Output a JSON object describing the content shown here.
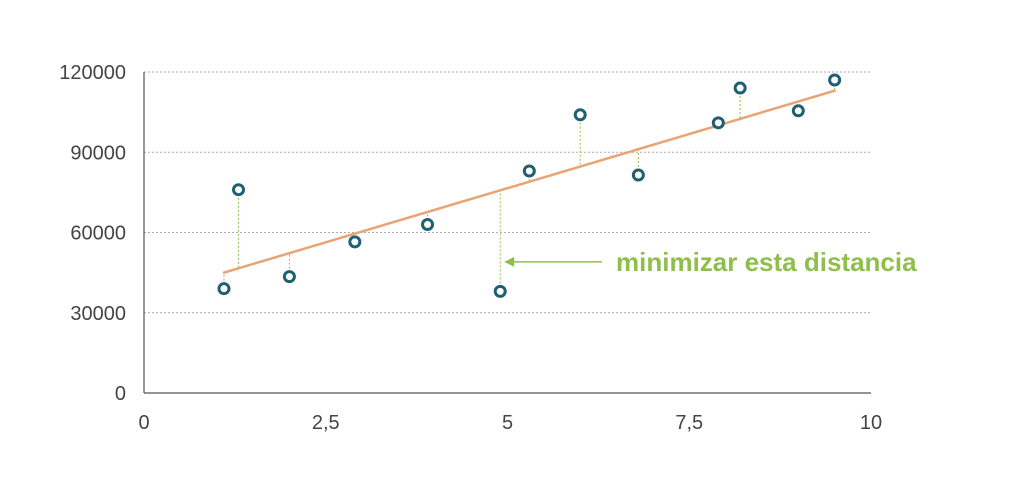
{
  "chart_data": {
    "type": "scatter",
    "title": "",
    "xlabel": "",
    "ylabel": "",
    "xlim": [
      0,
      10
    ],
    "ylim": [
      0,
      120000
    ],
    "x_ticks": [
      0,
      2.5,
      5,
      7.5,
      10
    ],
    "x_tick_labels": [
      "0",
      "2,5",
      "5",
      "7,5",
      "10"
    ],
    "y_ticks": [
      0,
      30000,
      60000,
      90000,
      120000
    ],
    "y_tick_labels": [
      "0",
      "30000",
      "60000",
      "90000",
      "120000"
    ],
    "grid": {
      "horizontal": true,
      "style": "dotted"
    },
    "series": [
      {
        "points": [
          {
            "x": 1.1,
            "y": 39000
          },
          {
            "x": 1.3,
            "y": 76000
          },
          {
            "x": 2.0,
            "y": 43500
          },
          {
            "x": 2.9,
            "y": 56500
          },
          {
            "x": 3.9,
            "y": 63000
          },
          {
            "x": 4.9,
            "y": 38000
          },
          {
            "x": 5.3,
            "y": 83000
          },
          {
            "x": 6.0,
            "y": 104000
          },
          {
            "x": 6.8,
            "y": 81500
          },
          {
            "x": 7.9,
            "y": 101000
          },
          {
            "x": 8.2,
            "y": 114000
          },
          {
            "x": 9.0,
            "y": 105500
          },
          {
            "x": 9.5,
            "y": 117000
          }
        ]
      }
    ],
    "regression_line": {
      "x_start": 1.1,
      "y_start": 45000,
      "x_end": 9.5,
      "y_end": 113000
    },
    "annotation": {
      "text": "minimizar esta distancia",
      "arrow_target": {
        "x": 4.9,
        "y": 49000
      }
    },
    "colors": {
      "point_stroke": "#1f5f72",
      "point_fill": "#ffffff",
      "regression_line": "#e8a474",
      "residual": "#8fbf4a",
      "annotation": "#8fbf4a",
      "grid": "#aaaaaa",
      "axis": "#555555"
    }
  }
}
